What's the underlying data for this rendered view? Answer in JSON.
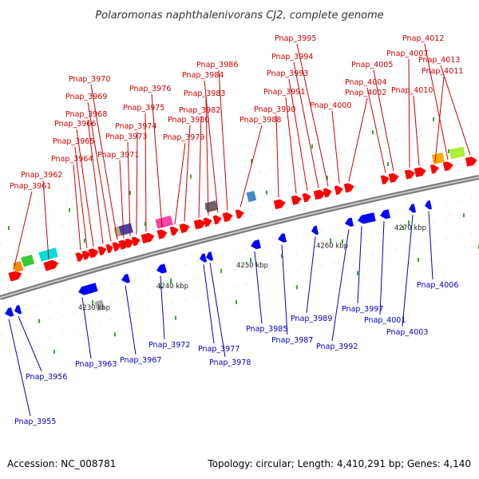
{
  "title": "Polaromonas naphthalenivorans CJ2, complete genome",
  "footer": {
    "accession": "Accession: NC_008781",
    "summary": "Topology: circular; Length: 4,410,291 bp; Genes: 4,140"
  },
  "colors": {
    "forward_label": "#cc0000",
    "reverse_label": "#0000bb",
    "forward_gene": "#ff0000",
    "reverse_gene": "#0000ff",
    "backbone": "#999999"
  },
  "scale_ticks": [
    {
      "label": "4230 kbp"
    },
    {
      "label": "4240 kbp"
    },
    {
      "label": "4250 kbp"
    },
    {
      "label": "4260 kbp"
    },
    {
      "label": "4270 kbp"
    }
  ],
  "genes_top": [
    {
      "name": "Pnap_3961",
      "color": "#ff0000"
    },
    {
      "name": "Pnap_3962",
      "color": "#ff0000"
    },
    {
      "name": "Pnap_3964",
      "color": "#ff0000"
    },
    {
      "name": "Pnap_3965",
      "color": "#ff0000"
    },
    {
      "name": "Pnap_3966",
      "color": "#ff0000"
    },
    {
      "name": "Pnap_3968",
      "color": "#ff0000"
    },
    {
      "name": "Pnap_3969",
      "color": "#ff0000"
    },
    {
      "name": "Pnap_3970",
      "color": "#ff0000"
    },
    {
      "name": "Pnap_3971",
      "color": "#ff0000"
    },
    {
      "name": "Pnap_3973",
      "color": "#ff0000"
    },
    {
      "name": "Pnap_3974",
      "color": "#ff0000"
    },
    {
      "name": "Pnap_3975",
      "color": "#ff0000"
    },
    {
      "name": "Pnap_3976",
      "color": "#ff0000"
    },
    {
      "name": "Pnap_3979",
      "color": "#ff0000"
    },
    {
      "name": "Pnap_3980",
      "color": "#ff0000"
    },
    {
      "name": "Pnap_3982",
      "color": "#ff0000"
    },
    {
      "name": "Pnap_3983",
      "color": "#ff0000"
    },
    {
      "name": "Pnap_3984",
      "color": "#ff0000"
    },
    {
      "name": "Pnap_3986",
      "color": "#ff0000"
    },
    {
      "name": "Pnap_3988",
      "color": "#ff0000"
    },
    {
      "name": "Pnap_3990",
      "color": "#ff0000"
    },
    {
      "name": "Pnap_3991",
      "color": "#ff0000"
    },
    {
      "name": "Pnap_3993",
      "color": "#ff0000"
    },
    {
      "name": "Pnap_3994",
      "color": "#ff0000"
    },
    {
      "name": "Pnap_3995",
      "color": "#ff0000"
    },
    {
      "name": "Pnap_4000",
      "color": "#ff0000"
    },
    {
      "name": "Pnap_4002",
      "color": "#ff0000"
    },
    {
      "name": "Pnap_4004",
      "color": "#ff0000"
    },
    {
      "name": "Pnap_4005",
      "color": "#ff0000"
    },
    {
      "name": "Pnap_4007",
      "color": "#ff0000"
    },
    {
      "name": "Pnap_4010",
      "color": "#ff0000"
    },
    {
      "name": "Pnap_4011",
      "color": "#ff0000"
    },
    {
      "name": "Pnap_4012",
      "color": "#ff0000"
    },
    {
      "name": "Pnap_4013",
      "color": "#ff0000"
    }
  ],
  "genes_bottom": [
    {
      "name": "Pnap_3955",
      "color": "#0000ff"
    },
    {
      "name": "Pnap_3956",
      "color": "#0000ff"
    },
    {
      "name": "Pnap_3963",
      "color": "#0000ff"
    },
    {
      "name": "Pnap_3967",
      "color": "#0000ff"
    },
    {
      "name": "Pnap_3972",
      "color": "#0000ff"
    },
    {
      "name": "Pnap_3977",
      "color": "#0000ff"
    },
    {
      "name": "Pnap_3978",
      "color": "#0000ff"
    },
    {
      "name": "Pnap_3985",
      "color": "#0000ff"
    },
    {
      "name": "Pnap_3987",
      "color": "#0000ff"
    },
    {
      "name": "Pnap_3989",
      "color": "#0000ff"
    },
    {
      "name": "Pnap_3992",
      "color": "#0000ff"
    },
    {
      "name": "Pnap_3997",
      "color": "#0000ff"
    },
    {
      "name": "Pnap_4001",
      "color": "#0000ff"
    },
    {
      "name": "Pnap_4003",
      "color": "#0000ff"
    },
    {
      "name": "Pnap_4006",
      "color": "#0000ff"
    }
  ],
  "other_features": [
    {
      "kind": "colored-box",
      "color": "#00dddd"
    },
    {
      "kind": "colored-box",
      "color": "#33cc33"
    },
    {
      "kind": "colored-box",
      "color": "#ff8800"
    },
    {
      "kind": "colored-box",
      "color": "#aaaaaa"
    },
    {
      "kind": "colored-box",
      "color": "#ff44aa"
    },
    {
      "kind": "colored-box",
      "color": "#4444aa"
    },
    {
      "kind": "colored-box",
      "color": "#bbaa66"
    },
    {
      "kind": "colored-box",
      "color": "#666666"
    },
    {
      "kind": "colored-box",
      "color": "#4488cc"
    },
    {
      "kind": "colored-box",
      "color": "#aaee33"
    },
    {
      "kind": "colored-box",
      "color": "#ffaa00"
    }
  ]
}
